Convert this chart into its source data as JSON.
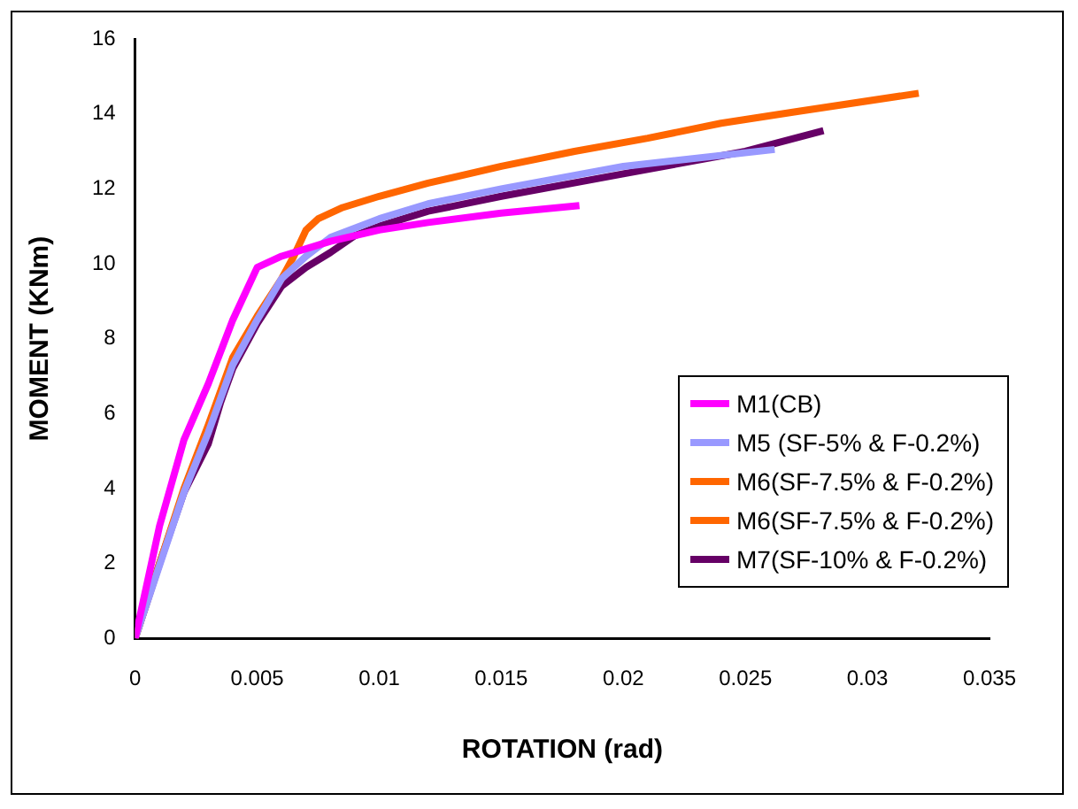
{
  "chart_data": {
    "type": "line",
    "xlabel": "ROTATION (rad)",
    "ylabel": "MOMENT (KNm)",
    "xlim": [
      0,
      0.035
    ],
    "xticks": [
      0,
      0.005,
      0.01,
      0.015,
      0.02,
      0.025,
      0.03,
      0.035
    ],
    "ylim": [
      0,
      16
    ],
    "yticks": [
      0,
      2,
      4,
      6,
      8,
      10,
      12,
      14,
      16
    ],
    "grid": false,
    "legend": "right",
    "marker": "none",
    "line_style": "solid",
    "series": [
      {
        "name": "M1(CB)",
        "color": "#ff00ff",
        "x": [
          0,
          0.001,
          0.002,
          0.003,
          0.004,
          0.0045,
          0.005,
          0.006,
          0.008,
          0.01,
          0.012,
          0.015,
          0.0182
        ],
        "values": [
          0,
          3,
          5.3,
          6.8,
          8.5,
          9.2,
          9.9,
          10.2,
          10.6,
          10.9,
          11.1,
          11.35,
          11.55
        ]
      },
      {
        "name": "M5 (SF-5% & F-0.2%)",
        "color": "#9999ff",
        "x": [
          0,
          0.002,
          0.003,
          0.004,
          0.005,
          0.006,
          0.007,
          0.008,
          0.01,
          0.012,
          0.015,
          0.02,
          0.0262
        ],
        "values": [
          0,
          3.9,
          5.5,
          7.3,
          8.5,
          9.6,
          10.2,
          10.7,
          11.2,
          11.6,
          12,
          12.6,
          13.05
        ]
      },
      {
        "name": "M6(SF-7.5% & F-0.2%)",
        "color": "#ff6600",
        "x": [
          0,
          0.002,
          0.003,
          0.004,
          0.005,
          0.006,
          0.0065,
          0.007,
          0.0075,
          0.0085,
          0.01,
          0.012,
          0.015,
          0.018,
          0.021,
          0.024,
          0.027,
          0.0321
        ],
        "values": [
          0,
          4,
          5.7,
          7.5,
          8.6,
          9.6,
          10.2,
          10.9,
          11.2,
          11.5,
          11.8,
          12.15,
          12.6,
          13,
          13.35,
          13.75,
          14.05,
          14.55
        ]
      },
      {
        "name": "M6(SF-7.5% & F-0.2%)",
        "color": "#ff6600",
        "values": [
          null,
          null,
          null
        ]
      },
      {
        "name": "M7(SF-10% & F-0.2%)",
        "color": "#660066",
        "x": [
          0,
          0.001,
          0.002,
          0.003,
          0.0035,
          0.004,
          0.005,
          0.006,
          0.007,
          0.008,
          0.009,
          0.01,
          0.012,
          0.015,
          0.02,
          0.025,
          0.0282
        ],
        "values": [
          0,
          2,
          3.9,
          5.2,
          6.3,
          7.2,
          8.4,
          9.4,
          9.9,
          10.3,
          10.75,
          11,
          11.4,
          11.8,
          12.4,
          13,
          13.55
        ]
      }
    ]
  }
}
